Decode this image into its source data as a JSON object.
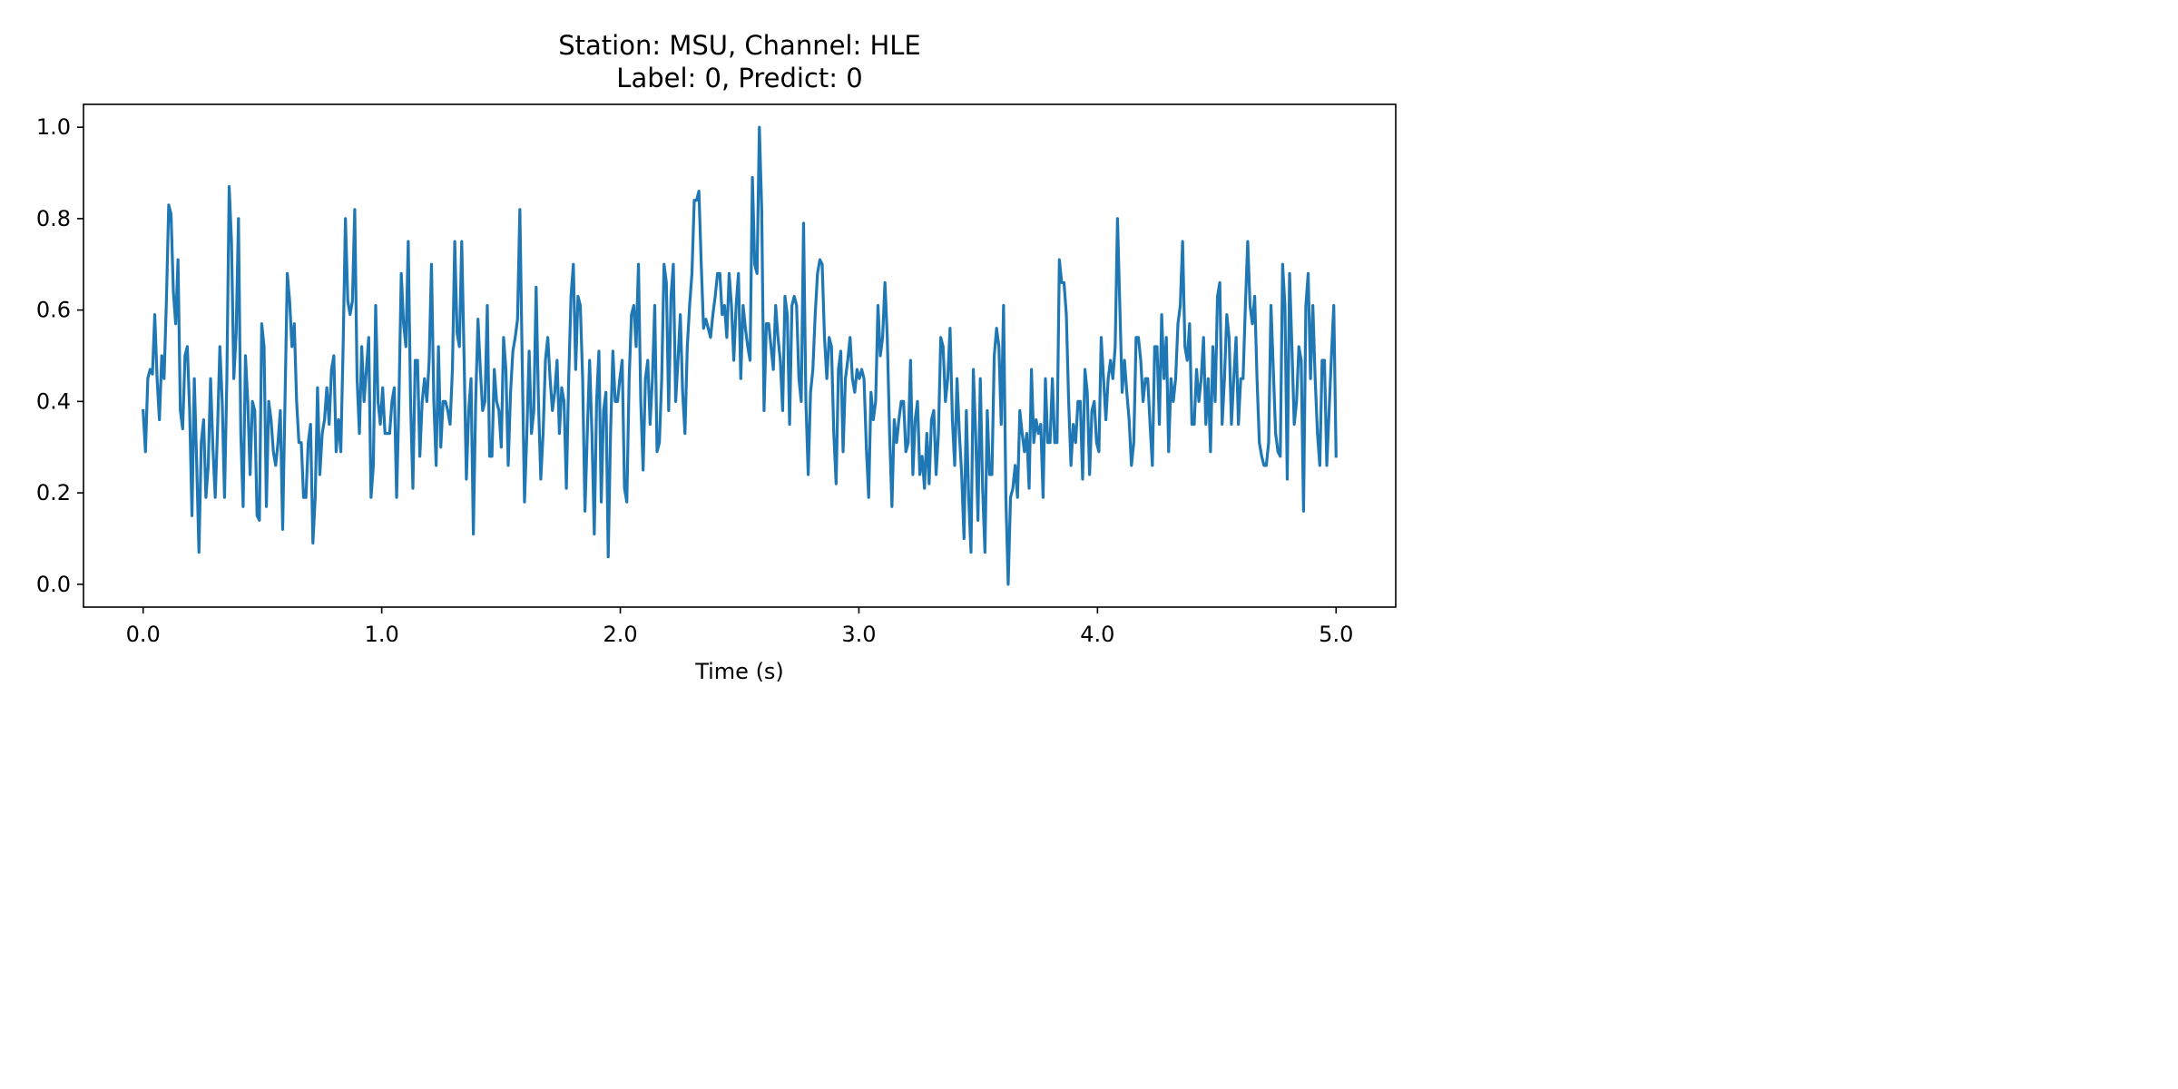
{
  "chart_data": {
    "type": "line",
    "title": [
      "Station: MSU, Channel: HLE",
      "Label: 0, Predict: 0"
    ],
    "xlabel": "Time (s)",
    "ylabel": "",
    "xlim": [
      -0.25,
      5.25
    ],
    "ylim": [
      -0.05,
      1.05
    ],
    "x_ticks": [
      0.0,
      1.0,
      2.0,
      3.0,
      4.0,
      5.0
    ],
    "x_tick_labels": [
      "0.0",
      "1.0",
      "2.0",
      "3.0",
      "4.0",
      "5.0"
    ],
    "y_ticks": [
      0.0,
      0.2,
      0.4,
      0.6,
      0.8,
      1.0
    ],
    "y_tick_labels": [
      "0.0",
      "0.2",
      "0.4",
      "0.6",
      "0.8",
      "1.0"
    ],
    "grid": false,
    "legend": "none",
    "series": [
      {
        "color": "#1f77b4",
        "x_start": 0.0,
        "x_end": 5.0,
        "values": [
          0.38,
          0.29,
          0.45,
          0.47,
          0.46,
          0.59,
          0.45,
          0.36,
          0.5,
          0.45,
          0.62,
          0.83,
          0.81,
          0.64,
          0.57,
          0.71,
          0.38,
          0.34,
          0.5,
          0.52,
          0.38,
          0.15,
          0.45,
          0.27,
          0.07,
          0.31,
          0.36,
          0.19,
          0.26,
          0.45,
          0.3,
          0.19,
          0.34,
          0.52,
          0.4,
          0.19,
          0.45,
          0.87,
          0.75,
          0.45,
          0.55,
          0.8,
          0.33,
          0.17,
          0.5,
          0.4,
          0.24,
          0.4,
          0.38,
          0.15,
          0.14,
          0.57,
          0.52,
          0.17,
          0.4,
          0.36,
          0.29,
          0.26,
          0.31,
          0.38,
          0.12,
          0.4,
          0.68,
          0.62,
          0.52,
          0.57,
          0.4,
          0.31,
          0.31,
          0.19,
          0.19,
          0.31,
          0.35,
          0.09,
          0.19,
          0.43,
          0.24,
          0.33,
          0.36,
          0.43,
          0.35,
          0.47,
          0.5,
          0.29,
          0.36,
          0.29,
          0.52,
          0.8,
          0.62,
          0.59,
          0.62,
          0.82,
          0.45,
          0.33,
          0.52,
          0.4,
          0.47,
          0.54,
          0.19,
          0.26,
          0.61,
          0.4,
          0.35,
          0.43,
          0.33,
          0.33,
          0.33,
          0.4,
          0.43,
          0.19,
          0.4,
          0.68,
          0.57,
          0.52,
          0.75,
          0.4,
          0.21,
          0.49,
          0.49,
          0.28,
          0.4,
          0.45,
          0.4,
          0.49,
          0.7,
          0.4,
          0.26,
          0.52,
          0.3,
          0.4,
          0.4,
          0.38,
          0.35,
          0.47,
          0.75,
          0.55,
          0.52,
          0.75,
          0.5,
          0.23,
          0.38,
          0.45,
          0.11,
          0.4,
          0.58,
          0.47,
          0.38,
          0.4,
          0.61,
          0.28,
          0.28,
          0.47,
          0.4,
          0.38,
          0.3,
          0.54,
          0.47,
          0.26,
          0.42,
          0.51,
          0.54,
          0.58,
          0.82,
          0.49,
          0.18,
          0.33,
          0.51,
          0.33,
          0.38,
          0.65,
          0.4,
          0.23,
          0.33,
          0.49,
          0.54,
          0.45,
          0.38,
          0.42,
          0.49,
          0.33,
          0.43,
          0.4,
          0.21,
          0.45,
          0.63,
          0.7,
          0.47,
          0.63,
          0.61,
          0.45,
          0.16,
          0.33,
          0.49,
          0.33,
          0.11,
          0.4,
          0.51,
          0.18,
          0.38,
          0.42,
          0.06,
          0.33,
          0.51,
          0.4,
          0.4,
          0.45,
          0.49,
          0.21,
          0.18,
          0.45,
          0.59,
          0.61,
          0.52,
          0.7,
          0.4,
          0.25,
          0.45,
          0.49,
          0.35,
          0.45,
          0.61,
          0.29,
          0.31,
          0.45,
          0.7,
          0.66,
          0.38,
          0.63,
          0.7,
          0.4,
          0.49,
          0.59,
          0.42,
          0.33,
          0.52,
          0.61,
          0.68,
          0.84,
          0.84,
          0.86,
          0.7,
          0.56,
          0.58,
          0.56,
          0.54,
          0.59,
          0.63,
          0.68,
          0.68,
          0.59,
          0.61,
          0.54,
          0.68,
          0.61,
          0.49,
          0.61,
          0.68,
          0.45,
          0.61,
          0.56,
          0.52,
          0.49,
          0.89,
          0.7,
          0.68,
          1.0,
          0.82,
          0.38,
          0.57,
          0.57,
          0.52,
          0.47,
          0.61,
          0.54,
          0.49,
          0.38,
          0.63,
          0.59,
          0.35,
          0.61,
          0.63,
          0.61,
          0.45,
          0.4,
          0.79,
          0.4,
          0.24,
          0.42,
          0.47,
          0.59,
          0.68,
          0.71,
          0.7,
          0.54,
          0.45,
          0.54,
          0.52,
          0.33,
          0.22,
          0.47,
          0.51,
          0.29,
          0.45,
          0.49,
          0.54,
          0.45,
          0.42,
          0.47,
          0.45,
          0.47,
          0.45,
          0.3,
          0.19,
          0.42,
          0.36,
          0.4,
          0.61,
          0.5,
          0.54,
          0.66,
          0.54,
          0.33,
          0.17,
          0.36,
          0.31,
          0.36,
          0.4,
          0.4,
          0.29,
          0.31,
          0.49,
          0.24,
          0.36,
          0.4,
          0.24,
          0.28,
          0.21,
          0.33,
          0.22,
          0.36,
          0.38,
          0.24,
          0.33,
          0.54,
          0.52,
          0.4,
          0.45,
          0.56,
          0.36,
          0.26,
          0.45,
          0.33,
          0.24,
          0.1,
          0.38,
          0.19,
          0.07,
          0.47,
          0.33,
          0.14,
          0.45,
          0.21,
          0.07,
          0.38,
          0.24,
          0.24,
          0.5,
          0.56,
          0.52,
          0.35,
          0.61,
          0.19,
          0.0,
          0.19,
          0.21,
          0.26,
          0.19,
          0.38,
          0.33,
          0.29,
          0.33,
          0.21,
          0.47,
          0.31,
          0.36,
          0.33,
          0.35,
          0.19,
          0.45,
          0.31,
          0.31,
          0.45,
          0.31,
          0.31,
          0.71,
          0.66,
          0.66,
          0.59,
          0.4,
          0.26,
          0.35,
          0.31,
          0.4,
          0.4,
          0.23,
          0.47,
          0.42,
          0.24,
          0.38,
          0.4,
          0.31,
          0.29,
          0.54,
          0.45,
          0.36,
          0.45,
          0.49,
          0.45,
          0.52,
          0.8,
          0.61,
          0.42,
          0.49,
          0.42,
          0.36,
          0.26,
          0.31,
          0.54,
          0.54,
          0.49,
          0.4,
          0.45,
          0.45,
          0.35,
          0.26,
          0.52,
          0.52,
          0.35,
          0.59,
          0.45,
          0.54,
          0.29,
          0.45,
          0.4,
          0.45,
          0.57,
          0.61,
          0.75,
          0.52,
          0.49,
          0.57,
          0.35,
          0.35,
          0.47,
          0.4,
          0.45,
          0.54,
          0.35,
          0.45,
          0.29,
          0.52,
          0.4,
          0.63,
          0.66,
          0.35,
          0.45,
          0.59,
          0.54,
          0.35,
          0.45,
          0.54,
          0.35,
          0.45,
          0.45,
          0.61,
          0.75,
          0.61,
          0.57,
          0.63,
          0.45,
          0.31,
          0.28,
          0.26,
          0.26,
          0.31,
          0.61,
          0.47,
          0.33,
          0.29,
          0.28,
          0.7,
          0.61,
          0.23,
          0.68,
          0.52,
          0.35,
          0.4,
          0.52,
          0.49,
          0.16,
          0.61,
          0.68,
          0.45,
          0.61,
          0.45,
          0.33,
          0.26,
          0.49,
          0.49,
          0.26,
          0.38,
          0.5,
          0.61,
          0.28
        ]
      }
    ]
  }
}
